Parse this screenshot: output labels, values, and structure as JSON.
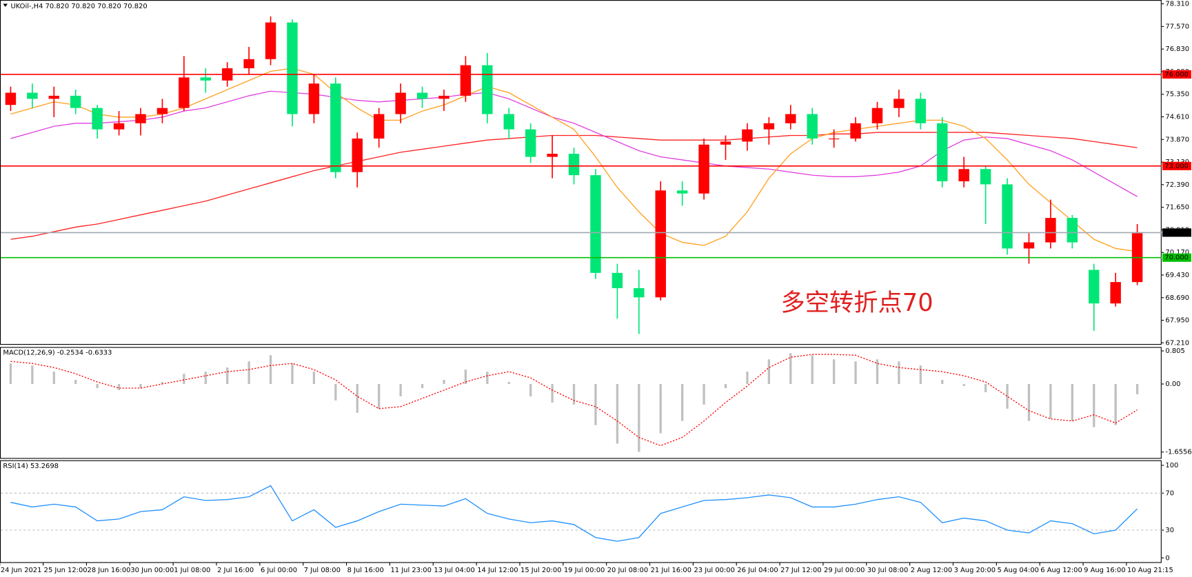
{
  "chart_data": [
    {
      "type": "candlestick",
      "title": "UKOil-,H4  70.820 70.820 70.820 70.820",
      "annotation": "多空转折点70",
      "categories": [
        "24 Jun 2021",
        null,
        "25 Jun 12:00",
        null,
        "28 Jun 16:00",
        null,
        "30 Jun 00:00",
        null,
        "1 Jul 08:00",
        null,
        "2 Jul 16:00",
        null,
        "6 Jul 00:00",
        null,
        "7 Jul 08:00",
        null,
        "8 Jul 16:00",
        null,
        "11 Jul 23:00",
        null,
        "13 Jul 04:00",
        null,
        "14 Jul 12:00",
        null,
        "15 Jul 20:00",
        null,
        "19 Jul 00:00",
        null,
        "20 Jul 08:00",
        null,
        "21 Jul 16:00",
        null,
        "23 Jul 00:00",
        null,
        "26 Jul 04:00",
        null,
        "27 Jul 12:00",
        null,
        "29 Jul 00:00",
        null,
        "30 Jul 08:00",
        null,
        "2 Aug 12:00",
        null,
        "3 Aug 20:00",
        null,
        "5 Aug 04:00",
        null,
        "6 Aug 12:00",
        null,
        "9 Aug 16:00",
        null,
        "10 Aug 21:15"
      ],
      "up_color": "#ff0000",
      "down_color": "#00e676",
      "ohlc": [
        [
          75.0,
          75.6,
          74.8,
          75.4
        ],
        [
          75.4,
          75.7,
          74.9,
          75.2
        ],
        [
          75.2,
          75.6,
          74.6,
          75.3
        ],
        [
          75.3,
          75.5,
          74.7,
          74.9
        ],
        [
          74.9,
          75.0,
          73.9,
          74.2
        ],
        [
          74.2,
          74.8,
          74.0,
          74.4
        ],
        [
          74.4,
          74.9,
          74.0,
          74.7
        ],
        [
          74.7,
          75.2,
          74.4,
          74.9
        ],
        [
          74.9,
          76.6,
          74.8,
          75.9
        ],
        [
          75.9,
          76.2,
          75.4,
          75.8
        ],
        [
          75.8,
          76.4,
          75.6,
          76.2
        ],
        [
          76.2,
          76.9,
          76.0,
          76.5
        ],
        [
          76.5,
          77.9,
          76.3,
          77.7
        ],
        [
          77.7,
          77.8,
          74.3,
          74.7
        ],
        [
          74.7,
          76.0,
          74.4,
          75.7
        ],
        [
          75.7,
          75.9,
          72.6,
          72.8
        ],
        [
          72.8,
          74.1,
          72.3,
          73.9
        ],
        [
          73.9,
          74.9,
          73.6,
          74.7
        ],
        [
          74.7,
          75.7,
          74.4,
          75.4
        ],
        [
          75.4,
          75.6,
          74.9,
          75.2
        ],
        [
          75.2,
          75.5,
          74.8,
          75.3
        ],
        [
          75.3,
          76.6,
          75.1,
          76.3
        ],
        [
          76.3,
          76.7,
          74.4,
          74.7
        ],
        [
          74.7,
          74.9,
          73.9,
          74.2
        ],
        [
          74.2,
          74.4,
          73.1,
          73.3
        ],
        [
          73.3,
          74.0,
          72.6,
          73.4
        ],
        [
          73.4,
          73.6,
          72.4,
          72.7
        ],
        [
          72.7,
          72.9,
          69.3,
          69.5
        ],
        [
          69.5,
          69.8,
          68.0,
          69.0
        ],
        [
          69.0,
          69.6,
          67.5,
          68.7
        ],
        [
          68.7,
          72.5,
          68.6,
          72.2
        ],
        [
          72.2,
          72.5,
          71.7,
          72.1
        ],
        [
          72.1,
          73.9,
          71.9,
          73.7
        ],
        [
          73.7,
          74.0,
          73.2,
          73.8
        ],
        [
          73.8,
          74.4,
          73.5,
          74.2
        ],
        [
          74.2,
          74.6,
          73.7,
          74.4
        ],
        [
          74.4,
          75.0,
          74.2,
          74.7
        ],
        [
          74.7,
          74.9,
          73.7,
          73.9
        ],
        [
          73.9,
          74.2,
          73.6,
          73.9
        ],
        [
          73.9,
          74.6,
          73.8,
          74.4
        ],
        [
          74.4,
          75.1,
          74.2,
          74.9
        ],
        [
          74.9,
          75.5,
          74.6,
          75.2
        ],
        [
          75.2,
          75.4,
          74.2,
          74.4
        ],
        [
          74.4,
          74.6,
          72.3,
          72.5
        ],
        [
          72.5,
          73.3,
          72.3,
          72.9
        ],
        [
          72.9,
          73.0,
          71.1,
          72.4
        ],
        [
          72.4,
          72.6,
          70.1,
          70.3
        ],
        [
          70.3,
          70.8,
          69.8,
          70.5
        ],
        [
          70.5,
          71.9,
          70.3,
          71.3
        ],
        [
          71.3,
          71.4,
          70.3,
          70.5
        ],
        [
          69.6,
          69.8,
          67.6,
          68.5
        ],
        [
          68.5,
          69.5,
          68.4,
          69.2
        ],
        [
          69.2,
          71.1,
          69.1,
          70.8
        ]
      ],
      "series": [
        {
          "color": "#ff2020",
          "values": [
            70.6,
            70.7,
            70.85,
            71.0,
            71.1,
            71.25,
            71.4,
            71.55,
            71.7,
            71.85,
            72.05,
            72.25,
            72.45,
            72.65,
            72.85,
            73.0,
            73.15,
            73.3,
            73.45,
            73.55,
            73.65,
            73.75,
            73.85,
            73.9,
            73.95,
            74.0,
            74.0,
            74.0,
            73.95,
            73.9,
            73.85,
            73.85,
            73.85,
            73.85,
            73.9,
            73.95,
            74.0,
            74.0,
            74.05,
            74.05,
            74.1,
            74.1,
            74.1,
            74.1,
            74.1,
            74.1,
            74.05,
            74.0,
            73.95,
            73.9,
            73.8,
            73.7,
            73.6
          ]
        },
        {
          "color": "#e040e0",
          "values": [
            73.9,
            74.1,
            74.3,
            74.4,
            74.4,
            74.45,
            74.5,
            74.6,
            74.8,
            74.9,
            75.1,
            75.3,
            75.45,
            75.4,
            75.35,
            75.25,
            75.15,
            75.1,
            75.15,
            75.2,
            75.25,
            75.35,
            75.4,
            75.2,
            74.9,
            74.6,
            74.4,
            74.1,
            73.8,
            73.5,
            73.3,
            73.2,
            73.1,
            73.0,
            72.95,
            72.9,
            72.8,
            72.7,
            72.65,
            72.65,
            72.7,
            72.8,
            73.0,
            73.5,
            73.85,
            73.95,
            73.9,
            73.7,
            73.5,
            73.2,
            72.8,
            72.4,
            72.0
          ]
        },
        {
          "color": "#ff9f1c",
          "values": [
            74.7,
            74.9,
            75.1,
            75.0,
            74.7,
            74.6,
            74.6,
            74.7,
            74.9,
            75.2,
            75.5,
            75.8,
            76.1,
            76.2,
            76.0,
            75.4,
            74.9,
            74.5,
            74.5,
            74.8,
            75.0,
            75.3,
            75.6,
            75.4,
            75.0,
            74.6,
            74.2,
            73.3,
            72.3,
            71.5,
            70.8,
            70.5,
            70.4,
            70.7,
            71.5,
            72.6,
            73.4,
            73.9,
            74.1,
            74.2,
            74.3,
            74.4,
            74.5,
            74.5,
            74.3,
            73.9,
            73.2,
            72.4,
            71.8,
            71.2,
            70.6,
            70.3,
            70.2
          ]
        }
      ],
      "levels": [
        {
          "value": 76,
          "label": "76.000",
          "color": "#ff0000",
          "box_color": "#ff0000"
        },
        {
          "value": 73,
          "label": "73.000",
          "color": "#ff0000",
          "box_color": "#ff0000"
        },
        {
          "value": 70,
          "label": "70.000",
          "color": "#00c000",
          "box_color": "#00c000"
        },
        {
          "value": 70.82,
          "label": "70.820",
          "color": "#a0a8b0",
          "box_color": "#000000"
        }
      ],
      "ylim": [
        67.16,
        78.41
      ],
      "yticks": [
        {
          "value": 78.31,
          "label": "78.310"
        },
        {
          "value": 77.57,
          "label": "77.570"
        },
        {
          "value": 76.83,
          "label": "76.830"
        },
        {
          "value": 76.09,
          "label": "76.090"
        },
        {
          "value": 75.35,
          "label": "75.350"
        },
        {
          "value": 74.61,
          "label": "74.610"
        },
        {
          "value": 73.87,
          "label": "73.870"
        },
        {
          "value": 73.13,
          "label": "73.130"
        },
        {
          "value": 72.39,
          "label": "72.390"
        },
        {
          "value": 71.65,
          "label": "71.650"
        },
        {
          "value": 70.91,
          "label": "70.910"
        },
        {
          "value": 70.17,
          "label": "70.170"
        },
        {
          "value": 69.43,
          "label": "69.430"
        },
        {
          "value": 68.69,
          "label": "68.690"
        },
        {
          "value": 67.95,
          "label": "67.950"
        },
        {
          "value": 67.21,
          "label": "67.210"
        }
      ]
    },
    {
      "type": "macd",
      "title": "MACD(12,26,9) -0.2534 -0.6333",
      "series": [
        {
          "color": "#c0c0c0",
          "values": [
            0.5,
            0.45,
            0.3,
            0.1,
            -0.1,
            -0.15,
            -0.1,
            0.05,
            0.25,
            0.3,
            0.4,
            0.55,
            0.7,
            0.5,
            0.3,
            -0.4,
            -0.7,
            -0.6,
            -0.3,
            -0.1,
            0.1,
            0.35,
            0.3,
            0.05,
            -0.3,
            -0.45,
            -0.5,
            -1.0,
            -1.45,
            -1.65,
            -1.2,
            -0.9,
            -0.5,
            -0.1,
            0.3,
            0.6,
            0.75,
            0.7,
            0.6,
            0.55,
            0.6,
            0.55,
            0.45,
            0.1,
            -0.05,
            -0.2,
            -0.6,
            -0.9,
            -0.85,
            -0.9,
            -1.05,
            -1.0,
            -0.25
          ]
        },
        {
          "color": "#ff0000",
          "values": [
            0.55,
            0.5,
            0.4,
            0.25,
            0.05,
            -0.1,
            -0.1,
            0.0,
            0.1,
            0.2,
            0.3,
            0.35,
            0.45,
            0.5,
            0.35,
            0.1,
            -0.3,
            -0.6,
            -0.55,
            -0.35,
            -0.15,
            0.05,
            0.2,
            0.3,
            0.15,
            -0.15,
            -0.4,
            -0.55,
            -0.9,
            -1.3,
            -1.5,
            -1.3,
            -0.9,
            -0.45,
            -0.05,
            0.4,
            0.65,
            0.72,
            0.72,
            0.7,
            0.5,
            0.4,
            0.35,
            0.3,
            0.2,
            0.05,
            -0.3,
            -0.65,
            -0.85,
            -0.9,
            -0.75,
            -0.95,
            -0.63
          ]
        }
      ],
      "ylim": [
        -1.81,
        0.89
      ],
      "yticks": [
        {
          "value": 0.805,
          "label": "0.805"
        },
        {
          "value": 0,
          "label": "0.00"
        },
        -1.6556
      ]
    },
    {
      "type": "rsi",
      "title": "RSI(14) 53.2698",
      "series": [
        {
          "color": "#1e90ff",
          "values": [
            60,
            55,
            58,
            55,
            40,
            42,
            50,
            52,
            66,
            62,
            63,
            66,
            78,
            40,
            52,
            33,
            40,
            50,
            58,
            57,
            56,
            64,
            48,
            42,
            38,
            40,
            36,
            22,
            18,
            22,
            48,
            55,
            62,
            63,
            65,
            68,
            65,
            55,
            55,
            58,
            63,
            66,
            60,
            38,
            43,
            40,
            30,
            27,
            40,
            37,
            26,
            30,
            53
          ]
        }
      ],
      "levels": [
        70,
        30
      ],
      "ylim": [
        -5,
        105
      ],
      "yticks": [
        100,
        70,
        30,
        0
      ]
    }
  ]
}
